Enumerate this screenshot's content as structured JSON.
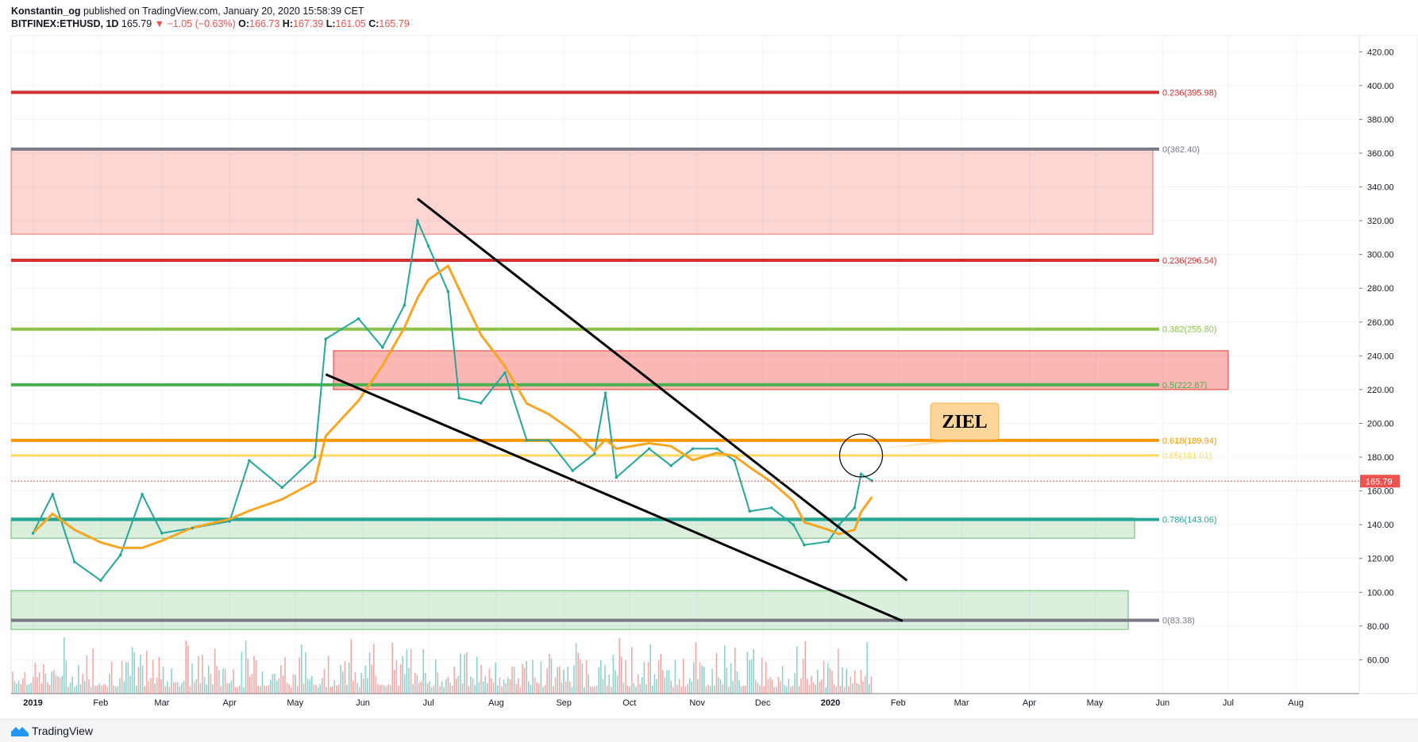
{
  "header": {
    "author": "Konstantin_og",
    "published": "published on TradingView.com, January 20, 2020 15:58:39 CET",
    "symbol": "BITFINEX:ETHUSD, 1D",
    "last": "165.79",
    "change": "−1.05 (−0.63%)",
    "o_label": "O:",
    "o": "166.73",
    "h_label": "H:",
    "h": "167.39",
    "l_label": "L:",
    "l": "161.05",
    "c_label": "C:",
    "c": "165.79"
  },
  "footer": {
    "brand": "TradingView",
    "brand_icon": "tradingview-logo-icon"
  },
  "chart_data": {
    "type": "line",
    "ylim": [
      40,
      430
    ],
    "y_ticks": [
      "60.00",
      "80.00",
      "100.00",
      "120.00",
      "140.00",
      "160.00",
      "180.00",
      "200.00",
      "220.00",
      "240.00",
      "260.00",
      "280.00",
      "300.00",
      "320.00",
      "340.00",
      "360.00",
      "380.00",
      "400.00",
      "420.00"
    ],
    "x_ticks": [
      "2019",
      "Feb",
      "Mar",
      "Apr",
      "May",
      "Jun",
      "Jul",
      "Aug",
      "Sep",
      "Oct",
      "Nov",
      "Dec",
      "2020",
      "Feb",
      "Mar",
      "Apr",
      "May",
      "Jun",
      "Jul",
      "Aug"
    ],
    "price_label": "165.79",
    "fib_levels": [
      {
        "label": "0.236(395.98)",
        "value": 395.98,
        "color": "#d32f2f"
      },
      {
        "label": "0(362.40)",
        "value": 362.4,
        "color": "#787b86"
      },
      {
        "label": "0.236(296.54)",
        "value": 296.54,
        "color": "#d32f2f"
      },
      {
        "label": "0.382(255.80)",
        "value": 255.8,
        "color": "#8bc34a"
      },
      {
        "label": "0.5(222.87)",
        "value": 222.87,
        "color": "#4caf50"
      },
      {
        "label": "0.618(189.94)",
        "value": 189.94,
        "color": "#ff9800"
      },
      {
        "label": "0.65(181.01)",
        "value": 181.01,
        "color": "#ffd966"
      },
      {
        "label": "0.786(143.06)",
        "value": 143.06,
        "color": "#26a69a"
      },
      {
        "label": "0(83.38)",
        "value": 83.38,
        "color": "#787b86"
      }
    ],
    "zones": [
      {
        "from": 312,
        "to": 362.4,
        "color": "red-light"
      },
      {
        "from": 220,
        "to": 243,
        "color": "red"
      },
      {
        "from": 132,
        "to": 144,
        "color": "green"
      },
      {
        "from": 78,
        "to": 101,
        "color": "green"
      }
    ],
    "annotation": "ZIEL",
    "series": [
      {
        "name": "",
        "values": [
          [
            "2019-01-01",
            135
          ],
          [
            "2019-01-10",
            158
          ],
          [
            "2019-01-20",
            118
          ],
          [
            "2019-02-01",
            107
          ],
          [
            "2019-02-10",
            122
          ],
          [
            "2019-02-20",
            158
          ],
          [
            "2019-03-01",
            135
          ],
          [
            "2019-03-15",
            138
          ],
          [
            "2019-04-01",
            142
          ],
          [
            "2019-04-10",
            178
          ],
          [
            "2019-04-25",
            162
          ],
          [
            "2019-05-10",
            180
          ],
          [
            "2019-05-15",
            250
          ],
          [
            "2019-05-30",
            262
          ],
          [
            "2019-06-10",
            245
          ],
          [
            "2019-06-20",
            270
          ],
          [
            "2019-06-26",
            320
          ],
          [
            "2019-07-01",
            305
          ],
          [
            "2019-07-10",
            278
          ],
          [
            "2019-07-15",
            215
          ],
          [
            "2019-07-25",
            212
          ],
          [
            "2019-08-05",
            230
          ],
          [
            "2019-08-15",
            190
          ],
          [
            "2019-08-25",
            190
          ],
          [
            "2019-09-05",
            172
          ],
          [
            "2019-09-15",
            182
          ],
          [
            "2019-09-20",
            218
          ],
          [
            "2019-09-25",
            168
          ],
          [
            "2019-10-10",
            185
          ],
          [
            "2019-10-20",
            175
          ],
          [
            "2019-10-30",
            185
          ],
          [
            "2019-11-10",
            185
          ],
          [
            "2019-11-18",
            178
          ],
          [
            "2019-11-25",
            148
          ],
          [
            "2019-12-05",
            150
          ],
          [
            "2019-12-15",
            140
          ],
          [
            "2019-12-20",
            128
          ],
          [
            "2019-12-31",
            130
          ],
          [
            "2020-01-05",
            140
          ],
          [
            "2020-01-12",
            150
          ],
          [
            "2020-01-15",
            170
          ],
          [
            "2020-01-20",
            166
          ]
        ]
      }
    ]
  }
}
